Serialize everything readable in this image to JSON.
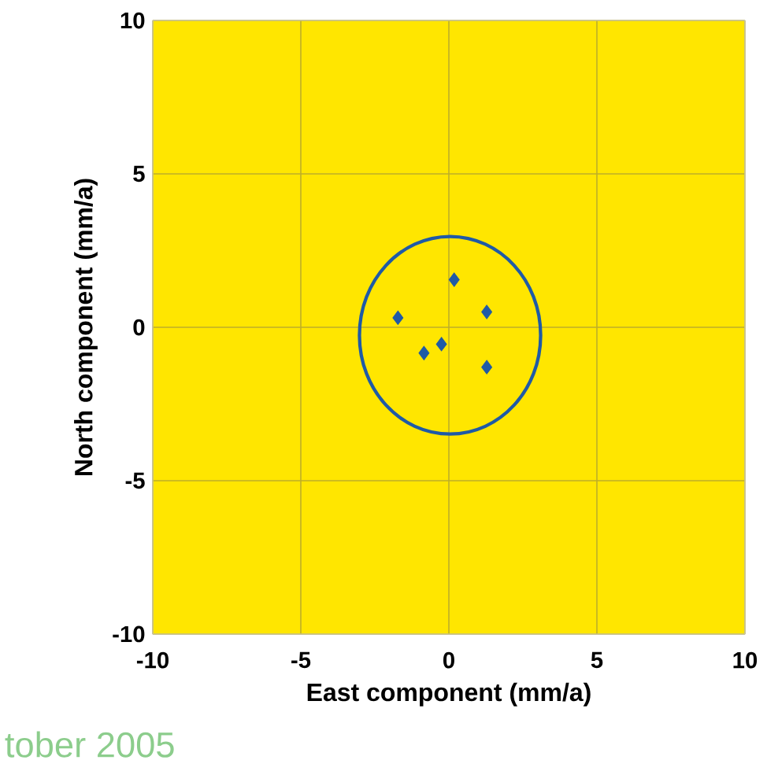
{
  "chart_data": {
    "type": "scatter",
    "xlabel": "East component (mm/a)",
    "ylabel": "North component (mm/a)",
    "xlim": [
      -10,
      10
    ],
    "ylim": [
      -10,
      10
    ],
    "xticks": [
      -10,
      -5,
      0,
      5,
      10
    ],
    "yticks": [
      -10,
      -5,
      0,
      5,
      10
    ],
    "grid": true,
    "series": [
      {
        "color": "#1f5aa6",
        "marker": "diamond",
        "x": [
          0.18,
          -1.72,
          1.28,
          -0.25,
          -0.84,
          1.28
        ],
        "values": [
          1.55,
          0.31,
          0.5,
          -0.55,
          -0.84,
          -1.3
        ]
      }
    ],
    "annotations": [
      "tober 2005"
    ]
  }
}
